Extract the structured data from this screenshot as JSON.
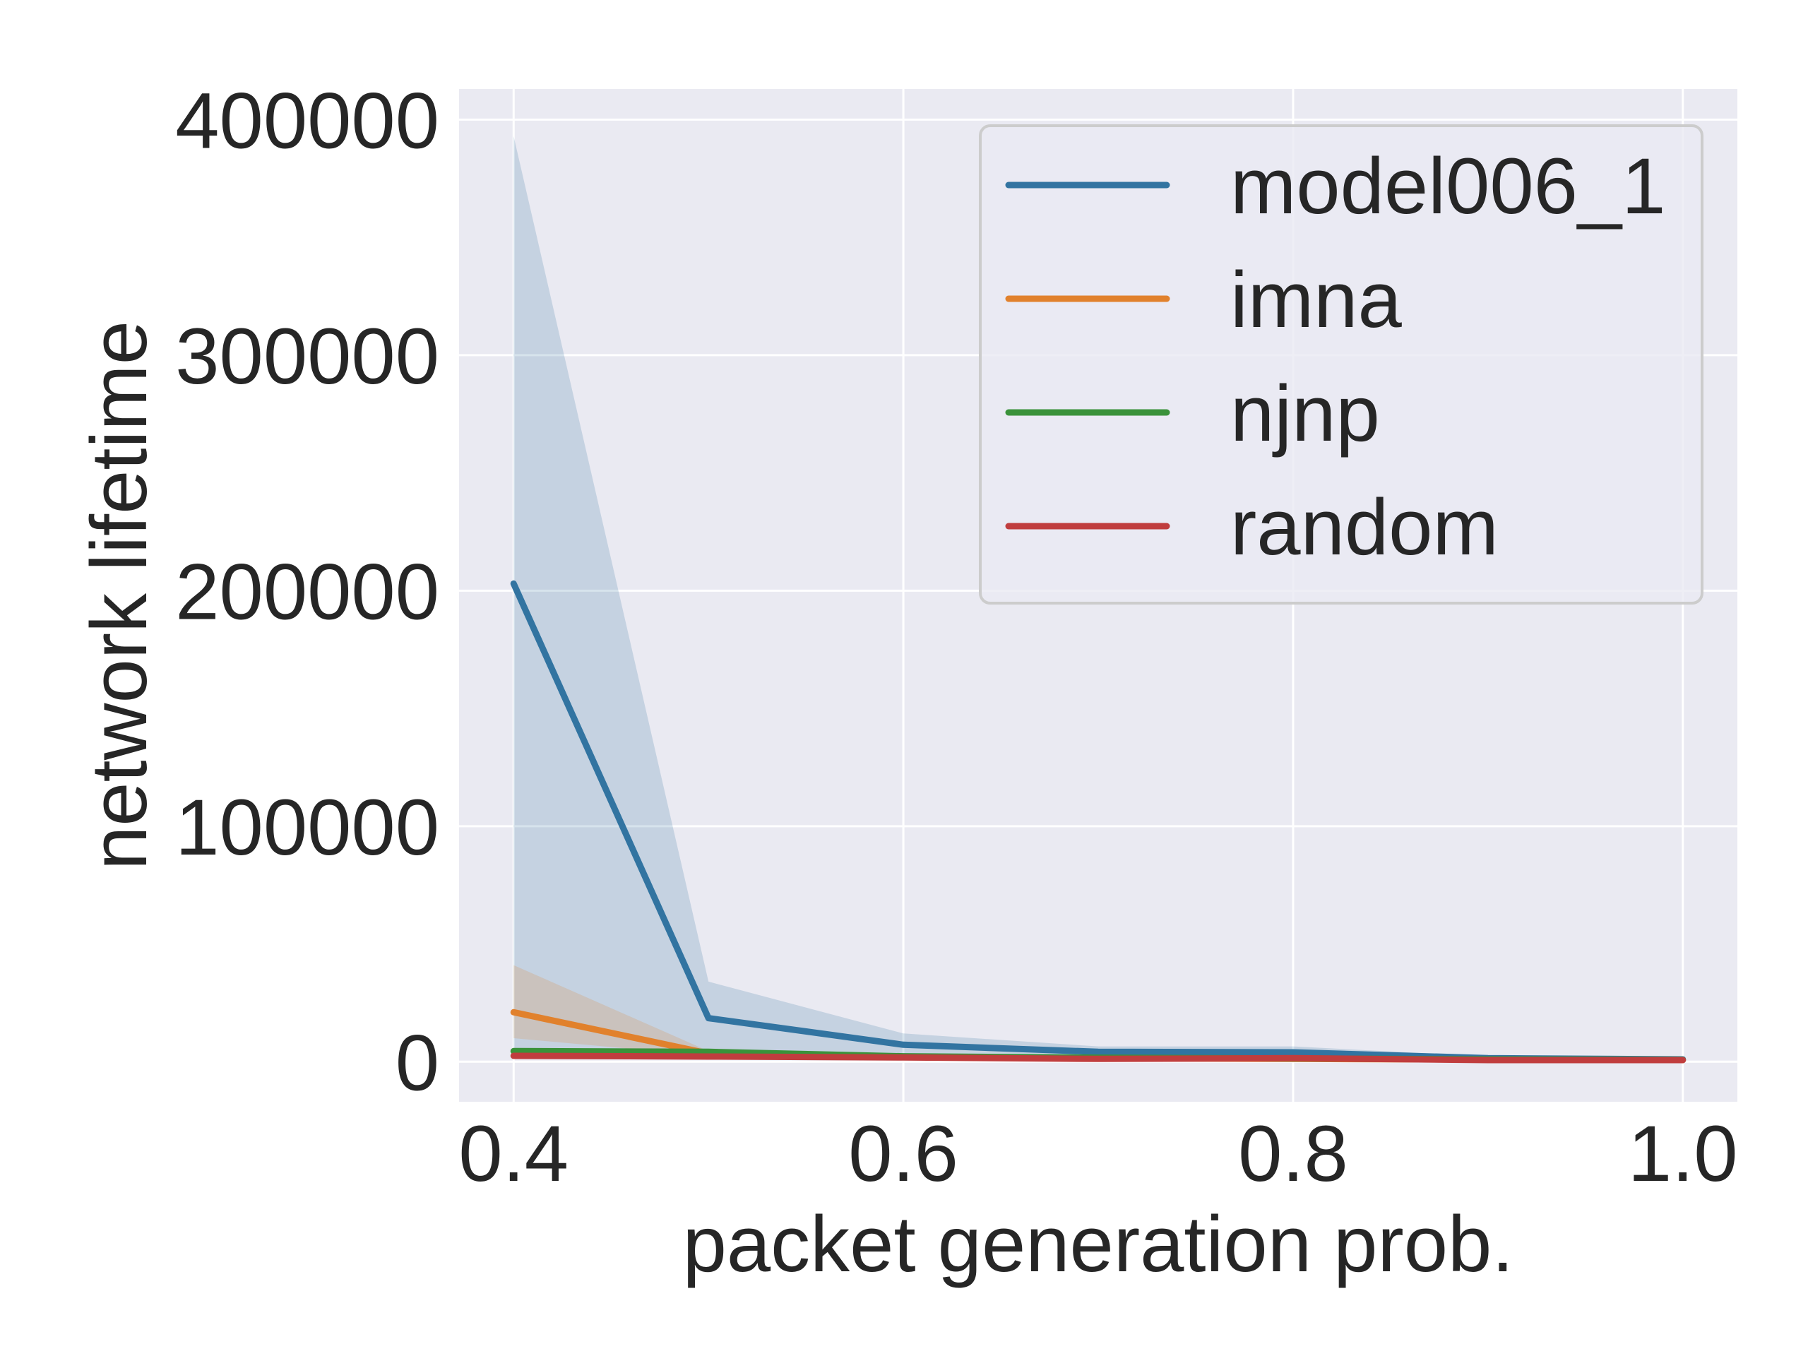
{
  "chart_data": {
    "type": "line",
    "title": "",
    "xlabel": "packet generation prob.",
    "ylabel": "network lifetime",
    "xlim": [
      0.372,
      1.028
    ],
    "ylim": [
      -17000,
      413000
    ],
    "xticks": [
      0.4,
      0.6,
      0.8,
      1.0
    ],
    "xtick_labels": [
      "0.4",
      "0.6",
      "0.8",
      "1.0"
    ],
    "yticks": [
      0,
      100000,
      200000,
      300000,
      400000
    ],
    "ytick_labels": [
      "0",
      "100000",
      "200000",
      "300000",
      "400000"
    ],
    "grid": true,
    "legend_position": "top-right",
    "x": [
      0.4,
      0.5,
      0.6,
      0.7,
      0.8,
      0.9,
      1.0
    ],
    "series": [
      {
        "name": "model006_1",
        "color": "#3274a1",
        "values": [
          203000,
          18500,
          7200,
          4200,
          4000,
          1500,
          1000
        ],
        "band_low": [
          2000,
          3000,
          2500,
          2000,
          1500,
          800,
          600
        ],
        "band_high": [
          393000,
          34000,
          12000,
          6500,
          6500,
          2200,
          1400
        ]
      },
      {
        "name": "imna",
        "color": "#e1812c",
        "values": [
          21000,
          3500,
          2000,
          1500,
          1200,
          900,
          700
        ],
        "band_low": [
          10000,
          2500,
          1500,
          1000,
          800,
          600,
          500
        ],
        "band_high": [
          41000,
          4500,
          2500,
          2000,
          1600,
          1100,
          900
        ]
      },
      {
        "name": "njnp",
        "color": "#3a923a",
        "values": [
          4500,
          4200,
          2300,
          1700,
          1400,
          1000,
          800
        ],
        "band_low": [
          3500,
          3500,
          2000,
          1400,
          1200,
          800,
          600
        ],
        "band_high": [
          5500,
          5000,
          2600,
          2000,
          1600,
          1200,
          1000
        ]
      },
      {
        "name": "random",
        "color": "#c03d3e",
        "values": [
          2500,
          2200,
          1800,
          1200,
          1500,
          700,
          700
        ],
        "band_low": [
          2000,
          1800,
          1500,
          1000,
          1200,
          500,
          500
        ],
        "band_high": [
          3000,
          2600,
          2100,
          1400,
          1800,
          900,
          900
        ]
      }
    ]
  }
}
